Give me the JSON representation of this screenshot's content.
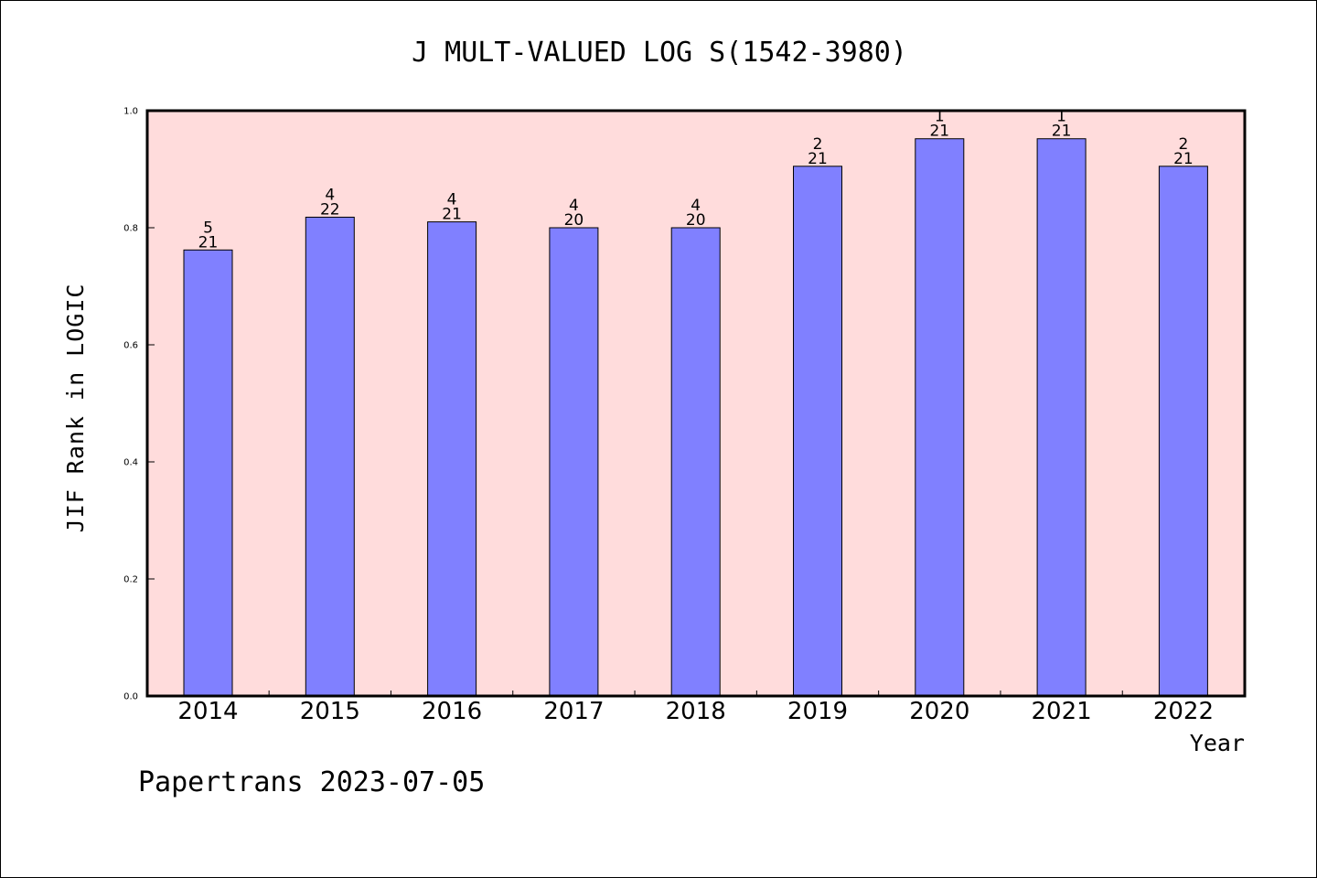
{
  "chart_data": {
    "type": "bar",
    "title": "J MULT-VALUED LOG S(1542-3980)",
    "xlabel": "Year",
    "ylabel": "JIF Rank in LOGIC",
    "categories": [
      "2014",
      "2015",
      "2016",
      "2017",
      "2018",
      "2019",
      "2020",
      "2021",
      "2022"
    ],
    "values": [
      0.762,
      0.818,
      0.81,
      0.8,
      0.8,
      0.905,
      0.952,
      0.952,
      0.905
    ],
    "rank": [
      "5",
      "4",
      "4",
      "4",
      "4",
      "2",
      "1",
      "1",
      "2"
    ],
    "total": [
      "21",
      "22",
      "21",
      "20",
      "20",
      "21",
      "21",
      "21",
      "21"
    ],
    "ylim": [
      0,
      1.0
    ],
    "yticks": [
      "0.0",
      "0.2",
      "0.4",
      "0.6",
      "0.8",
      "1.0"
    ],
    "grid": false,
    "colors": {
      "plot_background": "#ffdcdc",
      "bar_fill": "#8080ff",
      "bar_edge": "#000000"
    }
  },
  "footer": "Papertrans 2023-07-05"
}
